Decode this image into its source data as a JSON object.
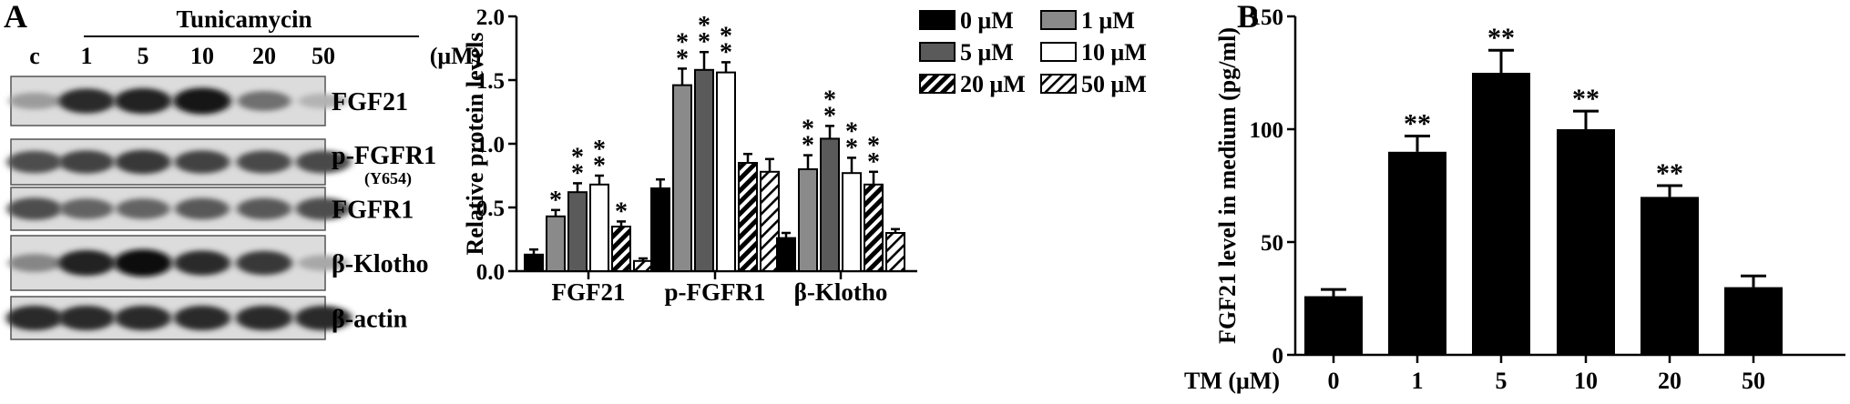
{
  "panel_a": {
    "letter": "A",
    "treatment": "Tunicamycin",
    "unit": "(μM)",
    "lanes": [
      "c",
      "1",
      "5",
      "10",
      "20",
      "50"
    ],
    "blots": [
      {
        "label": "FGF21",
        "sublabel": "",
        "intensity": [
          0.35,
          0.85,
          0.9,
          0.95,
          0.55,
          0.25
        ]
      },
      {
        "label": "p-FGFR1",
        "sublabel": "(Y654)",
        "intensity": [
          0.7,
          0.75,
          0.8,
          0.75,
          0.72,
          0.72
        ]
      },
      {
        "label": "FGFR1",
        "sublabel": "",
        "intensity": [
          0.7,
          0.6,
          0.6,
          0.65,
          0.65,
          0.7
        ]
      },
      {
        "label": "β-Klotho",
        "sublabel": "",
        "intensity": [
          0.45,
          0.9,
          1.0,
          0.85,
          0.8,
          0.3
        ]
      },
      {
        "label": "β-actin",
        "sublabel": "",
        "intensity": [
          0.85,
          0.85,
          0.85,
          0.85,
          0.85,
          0.85
        ]
      }
    ]
  },
  "chart_data": [
    {
      "type": "bar",
      "panel": "A",
      "title": "",
      "ylabel": "Relative protein levels",
      "xlabel": "",
      "ylim": [
        0,
        2.0
      ],
      "yticks": [
        "0.0",
        "0.5",
        "1.0",
        "1.5",
        "2.0"
      ],
      "categories": [
        "FGF21",
        "p-FGFR1",
        "β-Klotho"
      ],
      "legend_position": "top-right",
      "series": [
        {
          "name": "0 μM",
          "fill": "black",
          "values": [
            0.13,
            0.65,
            0.26
          ],
          "errors": [
            0.04,
            0.07,
            0.04
          ],
          "sig": [
            "",
            "",
            ""
          ]
        },
        {
          "name": "1 μM",
          "fill": "gray",
          "values": [
            0.43,
            1.46,
            0.8
          ],
          "errors": [
            0.05,
            0.13,
            0.11
          ],
          "sig": [
            "*",
            "**",
            "**"
          ]
        },
        {
          "name": "5 μM",
          "fill": "darkgray",
          "values": [
            0.62,
            1.58,
            1.04
          ],
          "errors": [
            0.07,
            0.14,
            0.1
          ],
          "sig": [
            "**",
            "**",
            "**"
          ]
        },
        {
          "name": "10 μM",
          "fill": "white",
          "values": [
            0.68,
            1.56,
            0.77
          ],
          "errors": [
            0.07,
            0.08,
            0.12
          ],
          "sig": [
            "**",
            "**",
            "**"
          ]
        },
        {
          "name": "20 μM",
          "fill": "hatch",
          "values": [
            0.35,
            0.85,
            0.68
          ],
          "errors": [
            0.04,
            0.07,
            0.1
          ],
          "sig": [
            "*",
            "",
            "**"
          ]
        },
        {
          "name": "50 μM",
          "fill": "hatch-white",
          "values": [
            0.08,
            0.78,
            0.3
          ],
          "errors": [
            0.02,
            0.1,
            0.03
          ],
          "sig": [
            "",
            "",
            ""
          ]
        }
      ]
    },
    {
      "type": "bar",
      "panel": "B",
      "title": "",
      "ylabel": "FGF21 level in medium (pg/ml)",
      "xlabel": "TM (μM)",
      "ylim": [
        0,
        150
      ],
      "yticks": [
        "0",
        "50",
        "100",
        "150"
      ],
      "categories": [
        "0",
        "1",
        "5",
        "10",
        "20",
        "50"
      ],
      "values": [
        26,
        90,
        125,
        100,
        70,
        30
      ],
      "errors": [
        3,
        7,
        10,
        8,
        5,
        5
      ],
      "sig": [
        "",
        "**",
        "**",
        "**",
        "**",
        ""
      ]
    }
  ]
}
